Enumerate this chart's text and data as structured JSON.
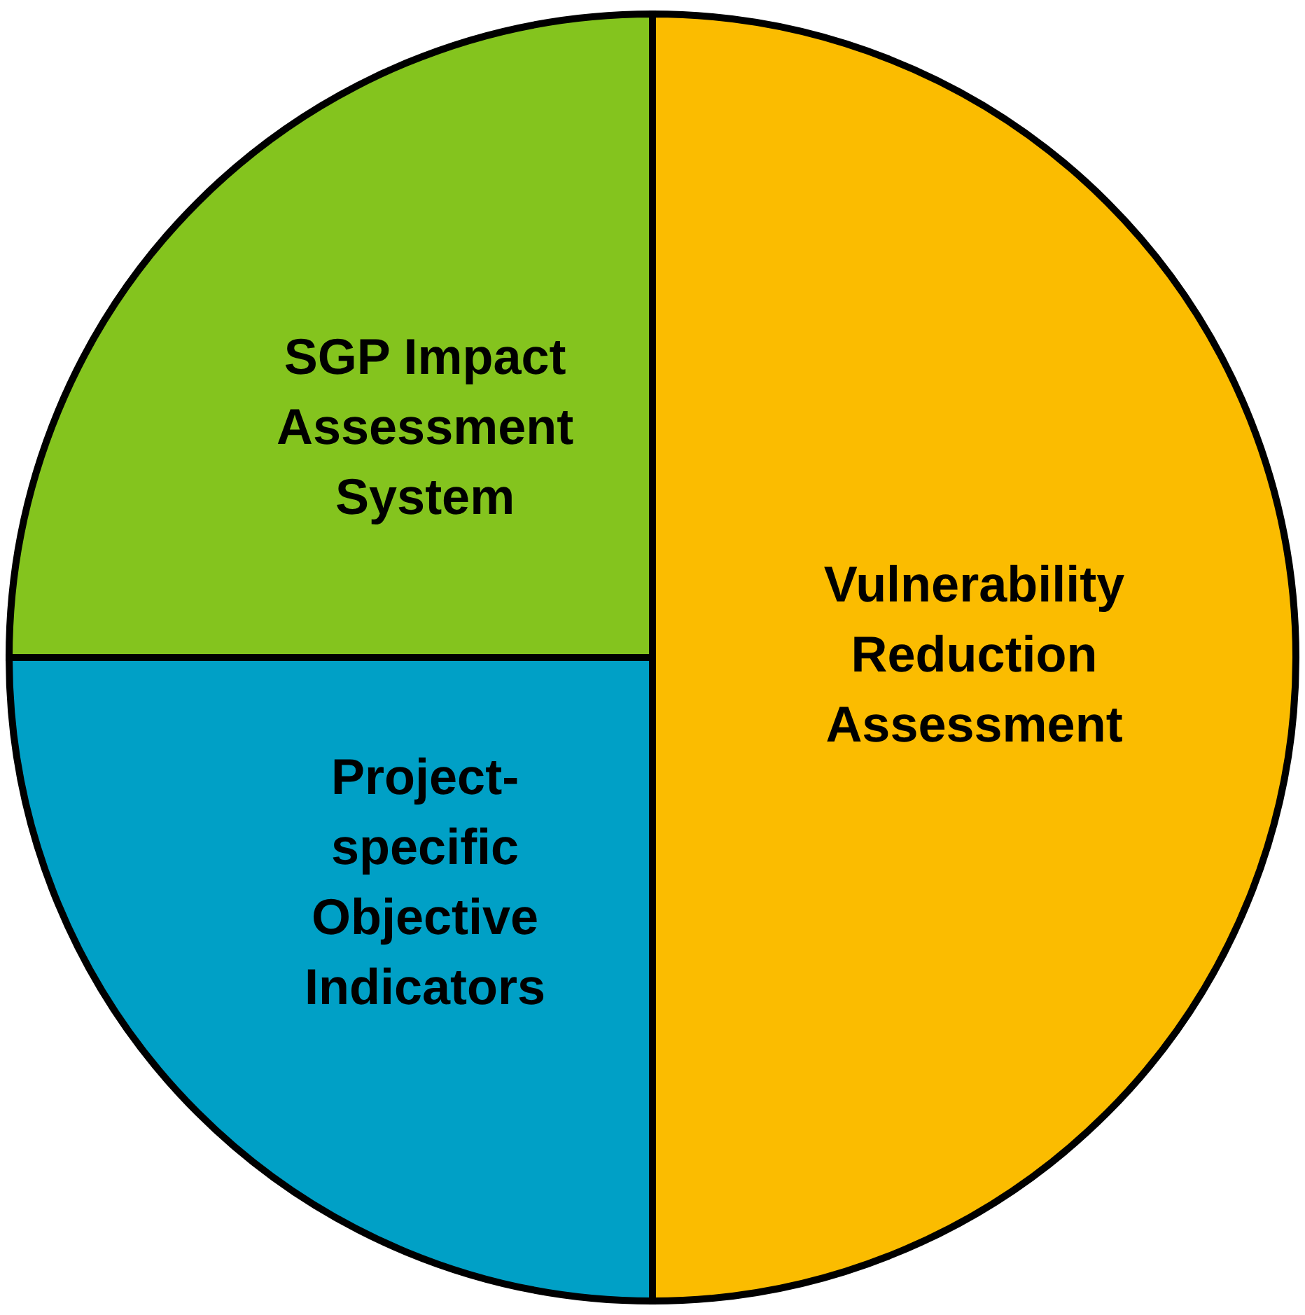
{
  "chart_data": {
    "type": "pie",
    "categories": [
      "Vulnerability Reduction Assessment",
      "Project-specific Objective Indicators",
      "SGP Impact Assessment System"
    ],
    "values": [
      50,
      25,
      25
    ],
    "colors": [
      "#fbbc00",
      "#00a0c6",
      "#84c41e"
    ],
    "legend": false
  }
}
